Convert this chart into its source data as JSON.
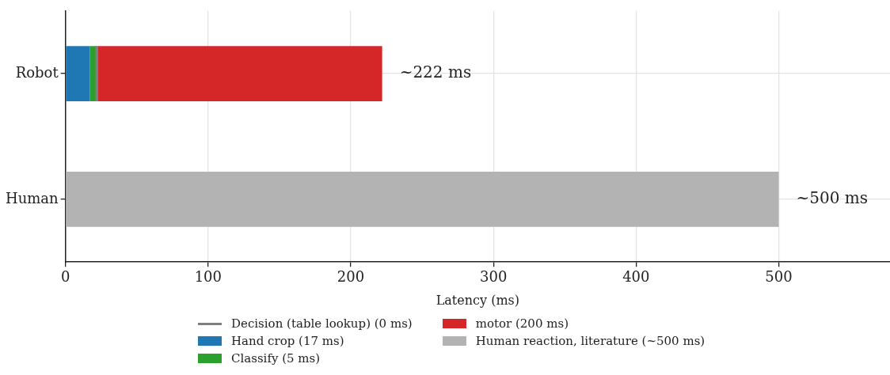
{
  "chart_data": {
    "type": "bar",
    "orientation": "horizontal",
    "stacked": true,
    "categories": [
      "Robot",
      "Human"
    ],
    "series": [
      {
        "name": "Hand crop (17 ms)",
        "color": "#1f77b4",
        "values": [
          17,
          null
        ]
      },
      {
        "name": "Classify (5 ms)",
        "color": "#2ca02c",
        "values": [
          5,
          null
        ]
      },
      {
        "name": "Decision (table lookup) (0 ms)",
        "color": "#7f7f7f",
        "values": [
          0,
          null
        ]
      },
      {
        "name": "motor (200 ms)",
        "color": "#d62728",
        "values": [
          200,
          null
        ]
      },
      {
        "name": "Human reaction, literature (~500 ms)",
        "color": "#b3b3b3",
        "values": [
          null,
          500
        ]
      }
    ],
    "xlabel": "Latency (ms)",
    "xlim": [
      0,
      578
    ],
    "xticks": [
      0,
      100,
      200,
      300,
      400,
      500
    ],
    "grid": true,
    "legend": "bottom",
    "annotations": [
      {
        "text": "~222 ms",
        "x": 222,
        "y": "Robot"
      },
      {
        "text": "~500 ms",
        "x": 500,
        "y": "Human"
      }
    ]
  }
}
